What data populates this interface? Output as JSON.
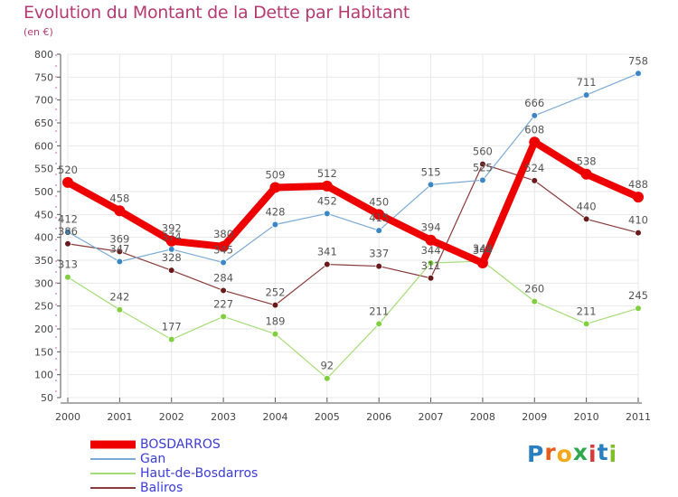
{
  "title": "Evolution du Montant de la Dette par Habitant",
  "subtitle": "(en €)",
  "brand": {
    "text": "Proxiti",
    "letter_colors": [
      "#2a7fc1",
      "#e85b1a",
      "#f2a818",
      "#2fa84f",
      "#d83a3a",
      "#2a7fc1",
      "#7fbf2a"
    ]
  },
  "colors": {
    "background": "#ffffff",
    "grid": "#e8e8e8",
    "axis": "#555555",
    "tick_text": "#444444",
    "data_label_text": "#555555"
  },
  "chart_data": {
    "type": "line",
    "title": "Evolution du Montant de la Dette par Habitant",
    "ylabel": "(en €)",
    "xlabel": "",
    "categories": [
      "2000",
      "2001",
      "2002",
      "2003",
      "2004",
      "2005",
      "2006",
      "2007",
      "2008",
      "2009",
      "2010",
      "2011"
    ],
    "ylim": [
      50,
      800
    ],
    "yticks": [
      50,
      100,
      150,
      200,
      250,
      300,
      350,
      400,
      450,
      500,
      550,
      600,
      650,
      700,
      750,
      800
    ],
    "grid": true,
    "legend_position": "bottom-left",
    "series": [
      {
        "name": "BOSDARROS",
        "color": "#ee0000",
        "values": [
          520,
          458,
          392,
          380,
          509,
          512,
          450,
          394,
          344,
          608,
          538,
          488
        ]
      },
      {
        "name": "Gan",
        "color": "#7aaad6",
        "point_color": "#3c86c6",
        "values": [
          412,
          347,
          374,
          345,
          428,
          452,
          415,
          515,
          525,
          666,
          711,
          758
        ]
      },
      {
        "name": "Haut-de-Bosdarros",
        "color": "#a6dc78",
        "point_color": "#7fcf3f",
        "values": [
          313,
          242,
          177,
          227,
          189,
          92,
          211,
          344,
          348,
          260,
          211,
          245
        ]
      },
      {
        "name": "Baliros",
        "color": "#8a3a3a",
        "point_color": "#6a1a1a",
        "values": [
          386,
          369,
          328,
          284,
          252,
          341,
          337,
          311,
          560,
          524,
          440,
          410
        ]
      }
    ]
  }
}
